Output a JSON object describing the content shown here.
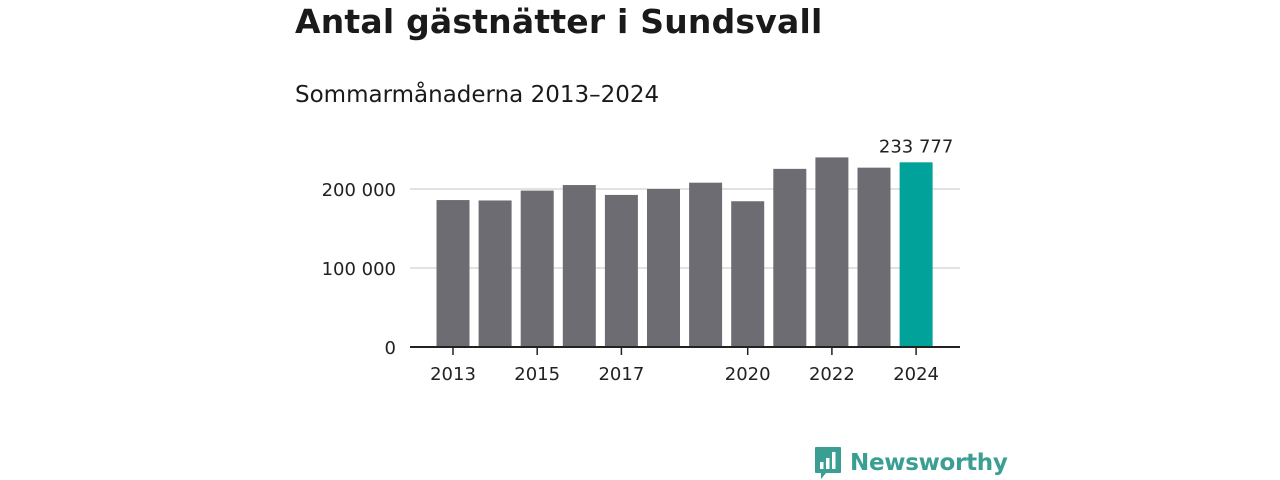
{
  "title": "Antal gästnätter i Sundsvall",
  "subtitle": "Sommarmånaderna 2013–2024",
  "brand": {
    "name": "Newsworthy",
    "icon": "bar-chart-speech-icon",
    "color": "#3a9e92"
  },
  "colors": {
    "bar": "#6d6c72",
    "highlight": "#00a29a",
    "grid": "#d9d9d9",
    "axis": "#222222"
  },
  "chart_data": {
    "type": "bar",
    "title": "Antal gästnätter i Sundsvall",
    "subtitle": "Sommarmånaderna 2013–2024",
    "categories": [
      "2013",
      "2014",
      "2015",
      "2016",
      "2017",
      "2018",
      "2019",
      "2020",
      "2021",
      "2022",
      "2023",
      "2024"
    ],
    "values": [
      186000,
      185500,
      198000,
      205000,
      192500,
      200000,
      208000,
      184500,
      225500,
      240000,
      227000,
      233777
    ],
    "x_tick_labels": [
      "2013",
      "2015",
      "2017",
      "2020",
      "2022",
      "2024"
    ],
    "y_tick_labels": [
      "0",
      "100 000",
      "200 000"
    ],
    "yticks": [
      0,
      100000,
      200000
    ],
    "ylim": [
      0,
      250000
    ],
    "highlight_category": "2024",
    "data_label": {
      "category": "2024",
      "text": "233 777"
    },
    "grid": true,
    "legend": false
  }
}
